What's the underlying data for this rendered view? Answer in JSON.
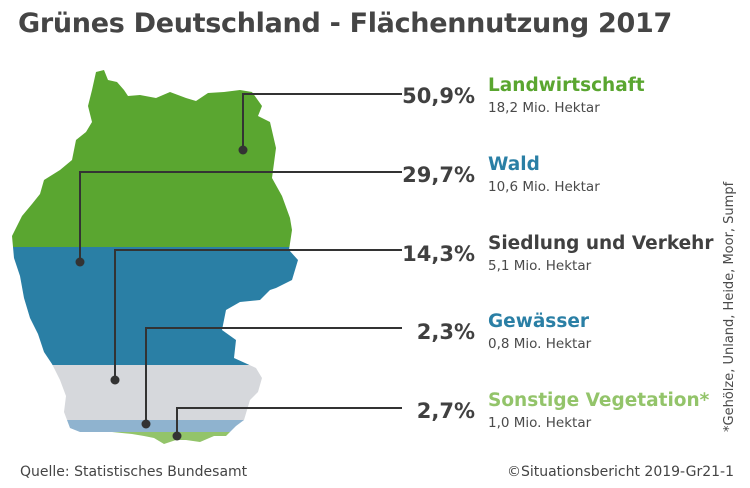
{
  "title": "Grünes Deutschland - Flächennutzung 2017",
  "chart_data": {
    "type": "table",
    "title": "Grünes Deutschland - Flächennutzung 2017",
    "unit": "Prozent der Fläche",
    "categories": [
      {
        "name": "Landwirtschaft",
        "percent": 50.9,
        "percent_label": "50,9%",
        "area_label": "18,2 Mio. Hektar",
        "area_mio_ha": 18.2,
        "color": "#5aa630"
      },
      {
        "name": "Wald",
        "percent": 29.7,
        "percent_label": "29,7%",
        "area_label": "10,6 Mio. Hektar",
        "area_mio_ha": 10.6,
        "color": "#2a7fa5"
      },
      {
        "name": "Siedlung und Verkehr",
        "percent": 14.3,
        "percent_label": "14,3%",
        "area_label": "5,1 Mio. Hektar",
        "area_mio_ha": 5.1,
        "color": "#d6d8dc"
      },
      {
        "name": "Gewässer",
        "percent": 2.3,
        "percent_label": "2,3%",
        "area_label": "0,8 Mio. Hektar",
        "area_mio_ha": 0.8,
        "color": "#8fb3cf"
      },
      {
        "name": "Sonstige Vegetation*",
        "percent": 2.7,
        "percent_label": "2,7%",
        "area_label": "1,0 Mio. Hektar",
        "area_mio_ha": 1.0,
        "color": "#93c46a"
      }
    ]
  },
  "footnote": "*Gehölze, Unland, Heide, Moor, Sumpf",
  "source": "Quelle: Statistisches Bundesamt",
  "copyright": "©Situationsbericht 2019-Gr21-1",
  "colors": {
    "green": "#5aa630",
    "blue": "#2a7fa5",
    "gray": "#d6d8dc",
    "lightblue": "#8fb3cf",
    "lightgreen": "#93c46a",
    "line": "#333333"
  }
}
